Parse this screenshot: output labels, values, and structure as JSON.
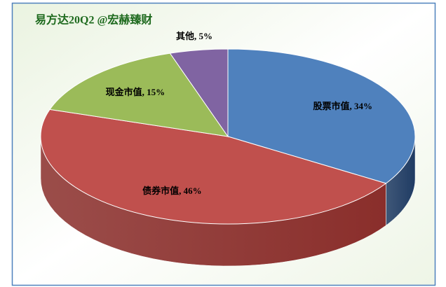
{
  "chart_data": {
    "type": "pie",
    "title": "易方达20Q2  @宏赫臻财",
    "values": [
      34,
      46,
      15,
      5
    ],
    "value_labels": [
      "股票市值, 34%",
      "债券市值, 46%",
      "现金市值, 15%",
      "其他, 5%"
    ],
    "colors": [
      "#4f81bd",
      "#c0504d",
      "#9bbb59",
      "#8064a2"
    ],
    "side_colors": [
      "#1f3b63",
      "#8a2e2b",
      "#5e7a2e",
      "#4b3966"
    ]
  }
}
